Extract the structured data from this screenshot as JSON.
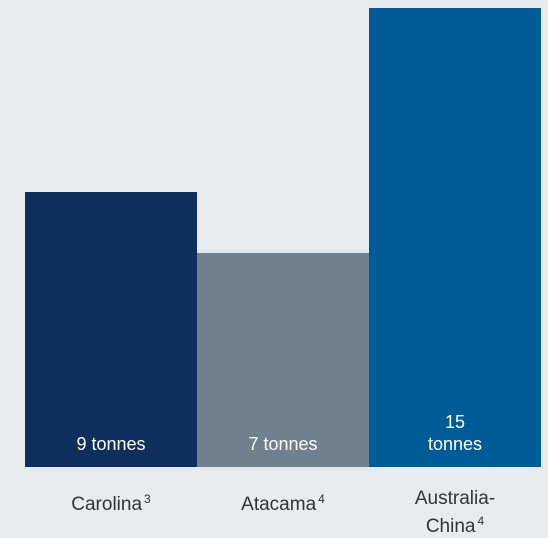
{
  "chart_data": {
    "type": "bar",
    "categories": [
      "Carolina",
      "Atacama",
      "Australia-\nChina"
    ],
    "category_superscripts": [
      "3",
      "4",
      "4"
    ],
    "values": [
      9,
      7,
      15
    ],
    "value_labels": [
      "9 tonnes",
      "7 tonnes",
      "15\ntonnes"
    ],
    "colors": [
      "#0f2f5f",
      "#6f808e",
      "#005b96"
    ],
    "ylim": [
      0,
      15
    ],
    "grid": false,
    "legend": "none"
  }
}
